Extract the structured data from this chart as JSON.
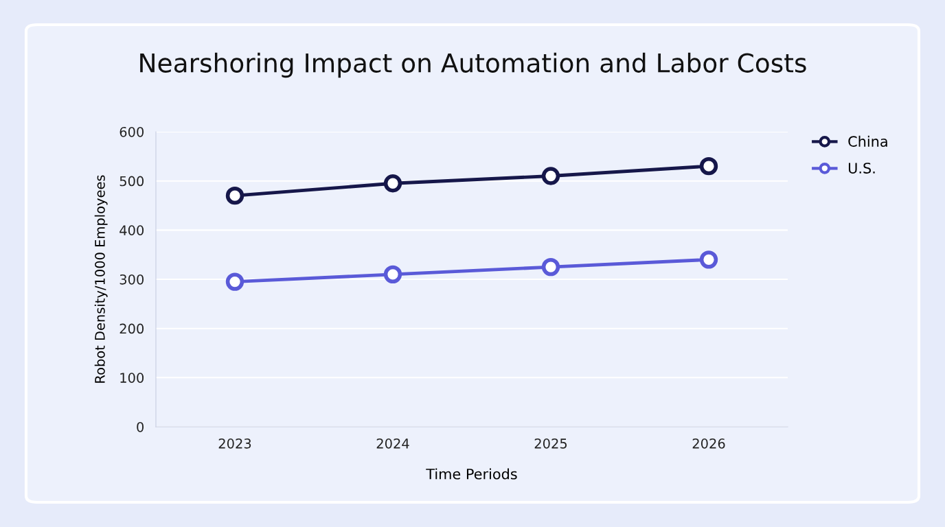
{
  "chart_data": {
    "type": "line",
    "title": "Nearshoring Impact on Automation and Labor Costs",
    "xlabel": "Time Periods",
    "ylabel": "Robot Density/1000 Employees",
    "categories": [
      "2023",
      "2024",
      "2025",
      "2026"
    ],
    "series": [
      {
        "name": "China",
        "color": "#16174a",
        "values": [
          470,
          495,
          510,
          530
        ]
      },
      {
        "name": "U.S.",
        "color": "#5a5ad8",
        "values": [
          295,
          310,
          325,
          340
        ]
      }
    ],
    "ylim": [
      0,
      600
    ],
    "yticks": [
      0,
      100,
      200,
      300,
      400,
      500,
      600
    ],
    "grid": "y",
    "legend": "top right",
    "marker": "circle",
    "line_style": "solid"
  }
}
